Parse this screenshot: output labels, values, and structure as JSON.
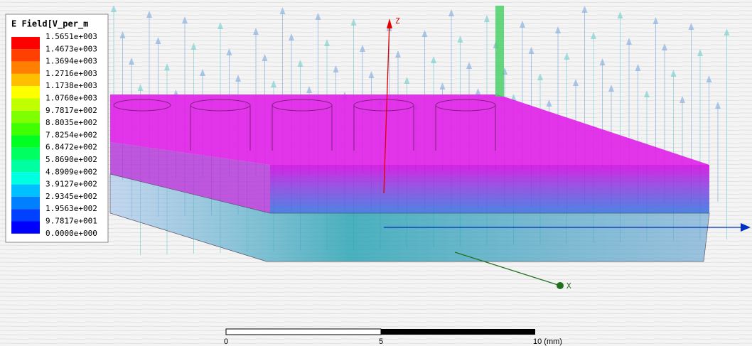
{
  "legend": {
    "title": "E Field[V_per_m",
    "labels": [
      "1.5651e+003",
      "1.4673e+003",
      "1.3694e+003",
      "1.2716e+003",
      "1.1738e+003",
      "1.0760e+003",
      "9.7817e+002",
      "8.8035e+002",
      "7.8254e+002",
      "6.8472e+002",
      "5.8690e+002",
      "4.8909e+002",
      "3.9127e+002",
      "2.9345e+002",
      "1.9563e+002",
      "9.7817e+001",
      "0.0000e+000"
    ],
    "colors": [
      "#ff0000",
      "#ff4000",
      "#ff8000",
      "#ffbf00",
      "#ffff00",
      "#bfff00",
      "#80ff00",
      "#40ff00",
      "#00ff20",
      "#00ff60",
      "#00ffa0",
      "#00ffe0",
      "#00c0ff",
      "#0080ff",
      "#0040ff",
      "#0000ff"
    ]
  },
  "axes": {
    "z": "Z",
    "x": "X"
  },
  "scale_bar": {
    "labels": [
      "0",
      "5",
      "10 (mm)"
    ]
  }
}
